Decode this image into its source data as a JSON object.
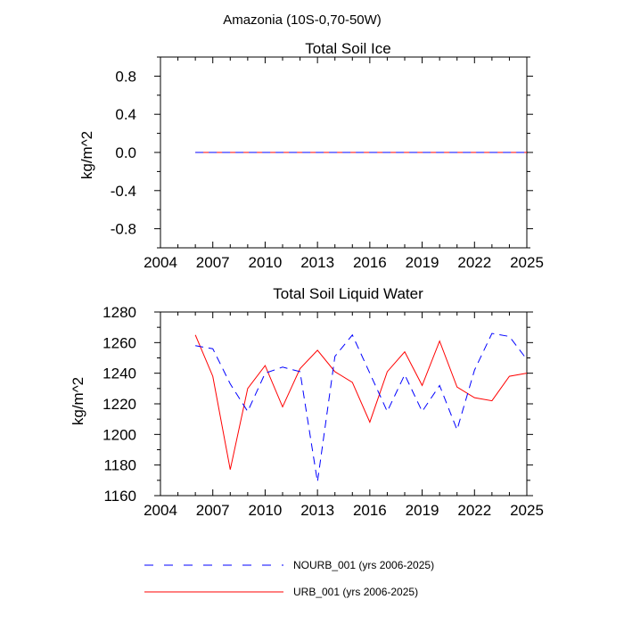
{
  "figure": {
    "main_title": "Amazonia (10S-0,70-50W)"
  },
  "chart_data": [
    {
      "type": "line",
      "title": "Total Soil Ice",
      "xlabel": "",
      "ylabel": "kg/m^2",
      "xlim": [
        2004,
        2025
      ],
      "ylim": [
        -1.0,
        1.0
      ],
      "xticks": [
        2004,
        2007,
        2010,
        2013,
        2016,
        2019,
        2022,
        2025
      ],
      "xtick_labels": [
        "2004",
        "2007",
        "2010",
        "2013",
        "2016",
        "2019",
        "2022",
        "2025"
      ],
      "yticks": [
        -0.8,
        -0.4,
        0.0,
        0.4,
        0.8
      ],
      "ytick_labels": [
        "-0.8",
        "-0.4",
        "0.0",
        "0.4",
        "0.8"
      ],
      "grid": false,
      "x": [
        2006,
        2007,
        2008,
        2009,
        2010,
        2011,
        2012,
        2013,
        2014,
        2015,
        2016,
        2017,
        2018,
        2019,
        2020,
        2021,
        2022,
        2023,
        2024,
        2025
      ],
      "series": [
        {
          "name": "NOURB_001",
          "color": "#0000ff",
          "dash": true,
          "values": [
            0,
            0,
            0,
            0,
            0,
            0,
            0,
            0,
            0,
            0,
            0,
            0,
            0,
            0,
            0,
            0,
            0,
            0,
            0,
            0
          ]
        },
        {
          "name": "URB_001",
          "color": "#ff0000",
          "dash": false,
          "values": [
            0,
            0,
            0,
            0,
            0,
            0,
            0,
            0,
            0,
            0,
            0,
            0,
            0,
            0,
            0,
            0,
            0,
            0,
            0,
            0
          ]
        }
      ]
    },
    {
      "type": "line",
      "title": "Total Soil Liquid Water",
      "xlabel": "",
      "ylabel": "kg/m^2",
      "xlim": [
        2004,
        2025
      ],
      "ylim": [
        1160,
        1280
      ],
      "xticks": [
        2004,
        2007,
        2010,
        2013,
        2016,
        2019,
        2022,
        2025
      ],
      "xtick_labels": [
        "2004",
        "2007",
        "2010",
        "2013",
        "2016",
        "2019",
        "2022",
        "2025"
      ],
      "yticks": [
        1160,
        1180,
        1200,
        1220,
        1240,
        1260,
        1280
      ],
      "ytick_labels": [
        "1160",
        "1180",
        "1200",
        "1220",
        "1240",
        "1260",
        "1280"
      ],
      "grid": false,
      "x": [
        2006,
        2007,
        2008,
        2009,
        2010,
        2011,
        2012,
        2013,
        2014,
        2015,
        2016,
        2017,
        2018,
        2019,
        2020,
        2021,
        2022,
        2023,
        2024,
        2025
      ],
      "series": [
        {
          "name": "NOURB_001",
          "color": "#0000ff",
          "dash": true,
          "values": [
            1258,
            1256,
            1233,
            1215,
            1240,
            1244,
            1241,
            1169,
            1251,
            1265,
            1240,
            1215,
            1239,
            1215,
            1232,
            1203,
            1242,
            1266,
            1264,
            1249
          ]
        },
        {
          "name": "URB_001",
          "color": "#ff0000",
          "dash": false,
          "values": [
            1265,
            1238,
            1177,
            1230,
            1245,
            1218,
            1243,
            1255,
            1241,
            1234,
            1208,
            1241,
            1254,
            1232,
            1261,
            1231,
            1224,
            1222,
            1238,
            1240
          ]
        }
      ]
    }
  ],
  "legend": {
    "placement": "bottom",
    "entries": [
      {
        "label": "NOURB_001 (yrs 2006-2025)",
        "color": "#0000ff",
        "dash": true
      },
      {
        "label": "URB_001 (yrs 2006-2025)",
        "color": "#ff0000",
        "dash": false
      }
    ]
  }
}
